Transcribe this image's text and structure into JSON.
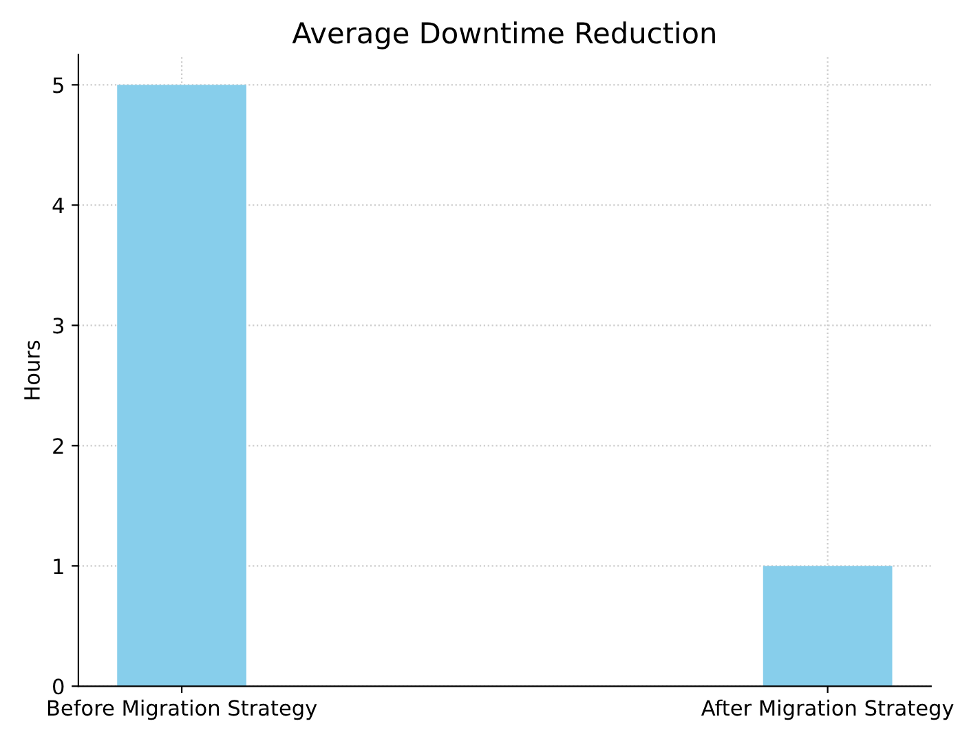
{
  "chart_data": {
    "type": "bar",
    "title": "Average Downtime Reduction",
    "ylabel": "Hours",
    "categories": [
      "Before Migration Strategy",
      "After Migration Strategy"
    ],
    "values": [
      5,
      1
    ],
    "color": "#87ceeb",
    "ylim": [
      0,
      5.25
    ],
    "yticks": [
      0,
      1,
      2,
      3,
      4,
      5
    ],
    "grid": true
  }
}
